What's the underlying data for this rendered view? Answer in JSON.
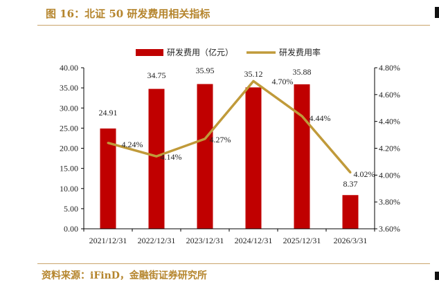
{
  "figure": {
    "title": "图 16：北证 50 研发费用相关指标",
    "source": "资料来源：iFinD，金融街证券研究所"
  },
  "colors": {
    "bar": "#c00000",
    "line": "#c09a3a",
    "accent_text": "#b5852d",
    "rule": "#c9a46a"
  },
  "chart_data": {
    "type": "bar",
    "categories": [
      "2021/12/31",
      "2022/12/31",
      "2023/12/31",
      "2024/12/31",
      "2025/12/31",
      "2026/3/31"
    ],
    "series": [
      {
        "name": "研发费用（亿元）",
        "type": "bar",
        "axis": "left",
        "values": [
          24.91,
          34.75,
          35.95,
          35.12,
          35.88,
          8.37
        ],
        "labels": [
          "24.91",
          "34.75",
          "35.95",
          "35.12",
          "35.88",
          "8.37"
        ]
      },
      {
        "name": "研发费用率",
        "type": "line",
        "axis": "right",
        "values": [
          4.24,
          4.14,
          4.27,
          4.7,
          4.44,
          4.02
        ],
        "labels": [
          "4.24%",
          "4.14%",
          "4.27%",
          "4.70%",
          "4.44%",
          "4.02%"
        ]
      }
    ],
    "left_axis": {
      "min": 0,
      "max": 40,
      "ticks": [
        "0.00",
        "5.00",
        "10.00",
        "15.00",
        "20.00",
        "25.00",
        "30.00",
        "35.00",
        "40.00"
      ]
    },
    "right_axis": {
      "min": 3.6,
      "max": 4.8,
      "ticks": [
        "3.60%",
        "3.80%",
        "4.00%",
        "4.20%",
        "4.40%",
        "4.60%",
        "4.80%"
      ]
    },
    "legend_position": "top-center",
    "grid": false
  }
}
